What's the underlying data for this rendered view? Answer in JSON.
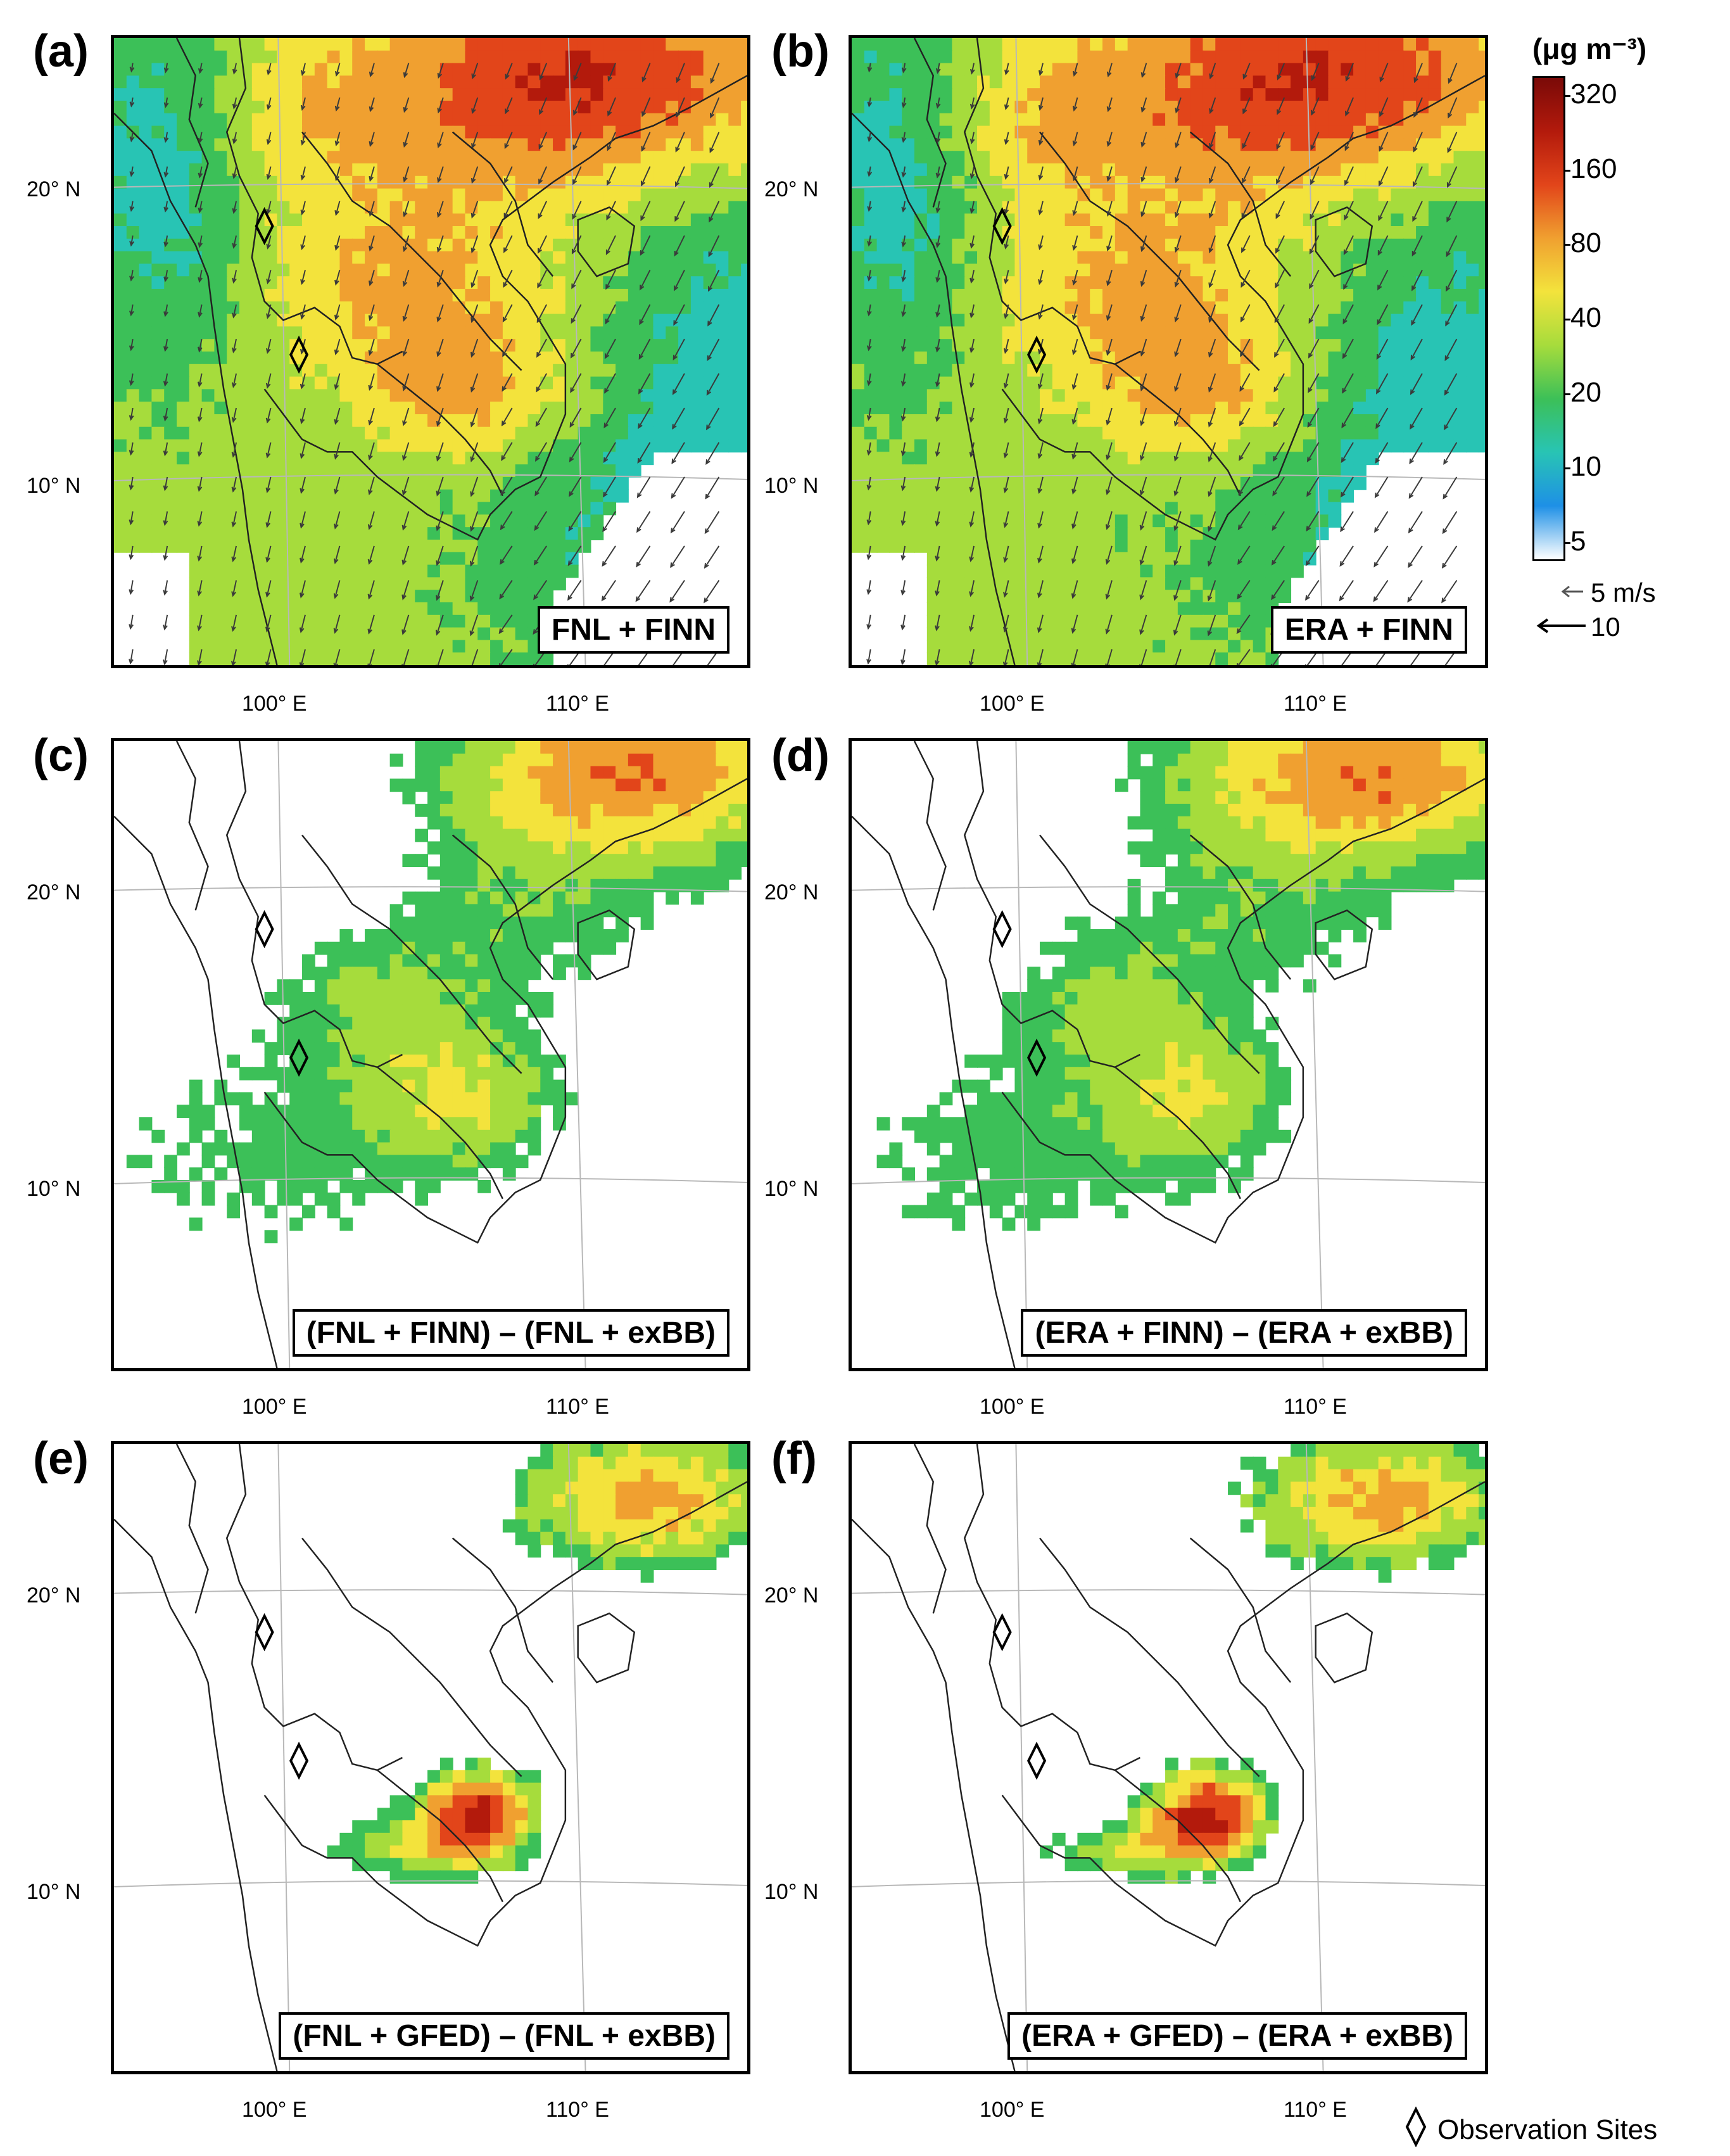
{
  "panels": [
    {
      "letter": "(a)",
      "caption": "FNL + FINN",
      "field": "full"
    },
    {
      "letter": "(b)",
      "caption": "ERA + FINN",
      "field": "full"
    },
    {
      "letter": "(c)",
      "caption": "(FNL + FINN) – (FNL + exBB)",
      "field": "diff_finn"
    },
    {
      "letter": "(d)",
      "caption": "(ERA + FINN) – (ERA + exBB)",
      "field": "diff_finn"
    },
    {
      "letter": "(e)",
      "caption": "(FNL + GFED) – (FNL + exBB)",
      "field": "diff_gfed"
    },
    {
      "letter": "(f)",
      "caption": "(ERA + GFED) – (ERA + exBB)",
      "field": "diff_gfed"
    }
  ],
  "axes": {
    "lat_labels": [
      "20° N",
      "10° N"
    ],
    "lon_labels": [
      "100° E",
      "110° E"
    ]
  },
  "colorbar": {
    "unit": "(μg m⁻³)",
    "ticks": [
      "320",
      "160",
      "80",
      "40",
      "20",
      "10",
      "5"
    ],
    "colors": [
      "#7a0a08",
      "#b31a0c",
      "#e2451a",
      "#f0a030",
      "#f3e33c",
      "#a6dc3c",
      "#3cc058",
      "#28c4b4",
      "#1e90e6",
      "#ffffff"
    ]
  },
  "wind_legend": [
    {
      "label": "5 m/s"
    },
    {
      "label": "10"
    }
  ],
  "observation_legend": "Observation Sites"
}
